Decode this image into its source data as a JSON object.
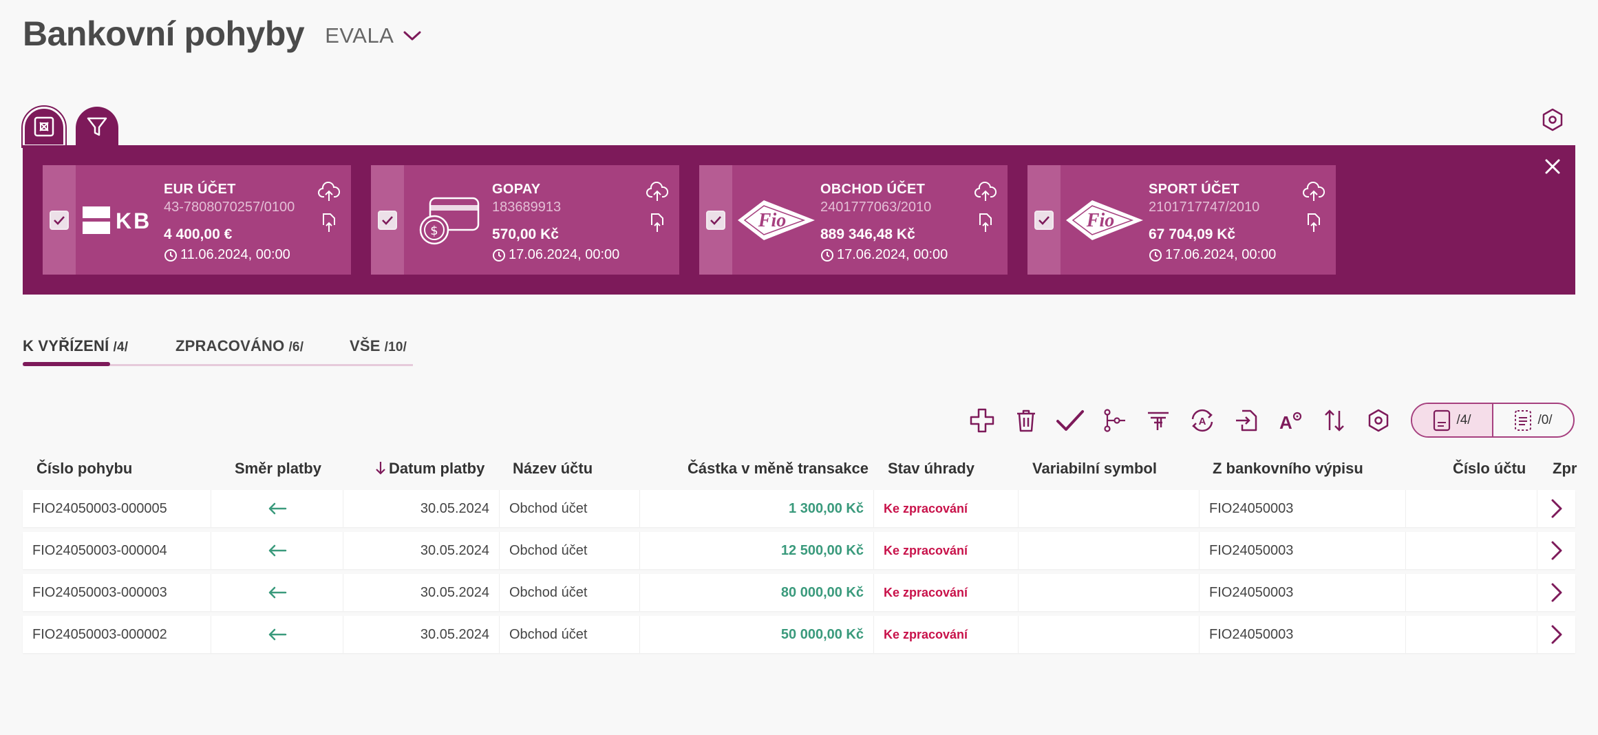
{
  "header": {
    "title": "Bankovní pohyby",
    "company": "EVALA"
  },
  "accounts": [
    {
      "name": "EUR ÚČET",
      "number": "43-7808070257/0100",
      "balance": "4 400,00 €",
      "date": "11.06.2024, 00:00",
      "logo": "KB"
    },
    {
      "name": "GOPAY",
      "number": "183689913",
      "balance": "570,00 Kč",
      "date": "17.06.2024, 00:00",
      "logo": "card-icon"
    },
    {
      "name": "OBCHOD ÚČET",
      "number": "2401777063/2010",
      "balance": "889 346,48 Kč",
      "date": "17.06.2024, 00:00",
      "logo": "Fio"
    },
    {
      "name": "SPORT ÚČET",
      "number": "2101717747/2010",
      "balance": "67 704,09 Kč",
      "date": "17.06.2024, 00:00",
      "logo": "Fio"
    }
  ],
  "tabs": [
    {
      "label": "K VYŘÍZENÍ",
      "count": "/4/"
    },
    {
      "label": "ZPRACOVÁNO",
      "count": "/6/"
    },
    {
      "label": "VŠE",
      "count": "/10/"
    }
  ],
  "toolbar": {
    "icons": [
      "add-icon",
      "delete-icon",
      "approve-icon",
      "workflow-icon",
      "filter-icon",
      "auto-assign-icon",
      "import-icon",
      "text-settings-icon",
      "sort-icon",
      "settings-icon"
    ]
  },
  "view_toggle": {
    "list_count": "/4/",
    "detail_count": "/0/"
  },
  "table": {
    "columns": [
      "Číslo pohybu",
      "Směr platby",
      "Datum platby",
      "Název účtu",
      "Částka v měně transakce",
      "Stav úhrady",
      "Variabilní symbol",
      "Z bankovního výpisu",
      "Číslo účtu",
      "Zpr"
    ],
    "rows": [
      {
        "id": "FIO24050003-000005",
        "date": "30.05.2024",
        "account": "Obchod účet",
        "amount": "1 300,00 Kč",
        "status": "Ke zpracování",
        "vs": "",
        "statement": "FIO24050003",
        "acc_no": ""
      },
      {
        "id": "FIO24050003-000004",
        "date": "30.05.2024",
        "account": "Obchod účet",
        "amount": "12 500,00 Kč",
        "status": "Ke zpracování",
        "vs": "",
        "statement": "FIO24050003",
        "acc_no": ""
      },
      {
        "id": "FIO24050003-000003",
        "date": "30.05.2024",
        "account": "Obchod účet",
        "amount": "80 000,00 Kč",
        "status": "Ke zpracování",
        "vs": "",
        "statement": "FIO24050003",
        "acc_no": ""
      },
      {
        "id": "FIO24050003-000002",
        "date": "30.05.2024",
        "account": "Obchod účet",
        "amount": "50 000,00 Kč",
        "status": "Ke zpracování",
        "vs": "",
        "statement": "FIO24050003",
        "acc_no": ""
      }
    ]
  },
  "colors": {
    "brand": "#7d1a5a",
    "card": "#a6407f",
    "amount": "#3a9a7c",
    "status": "#c8124a"
  }
}
